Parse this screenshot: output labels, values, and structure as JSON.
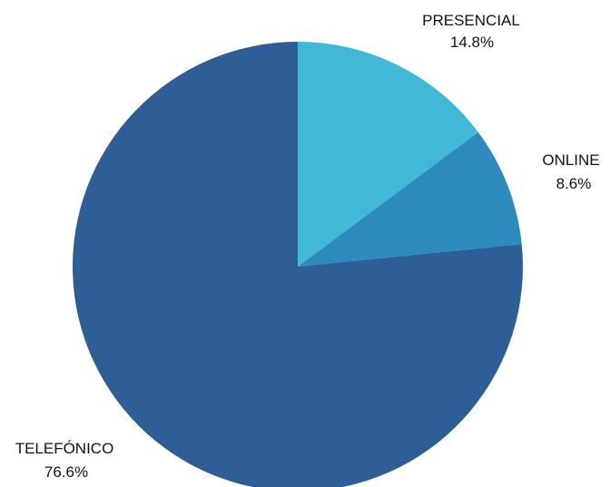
{
  "chart_data": {
    "type": "pie",
    "title": "",
    "legend": "none",
    "slices": [
      {
        "label": "PRESENCIAL",
        "value": 14.8,
        "value_label": "14.8%",
        "color": "#41b8d5"
      },
      {
        "label": "ONLINE",
        "value": 8.6,
        "value_label": "8.6%",
        "color": "#2e8bbd"
      },
      {
        "label": "TELEFÓNICO",
        "value": 76.6,
        "value_label": "76.6%",
        "color": "#2e5e96"
      }
    ],
    "start_angle_deg": 0,
    "direction": "clockwise",
    "labels": [
      {
        "name": "PRESENCIAL",
        "value": "14.8%"
      },
      {
        "name": "ONLINE",
        "value": "8.6%"
      },
      {
        "name": "TELEFÓNICO",
        "value": "76.6%"
      }
    ]
  }
}
